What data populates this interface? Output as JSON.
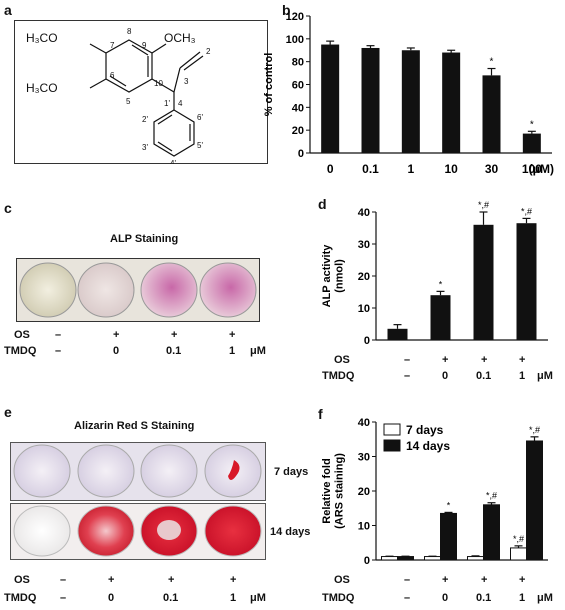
{
  "panels": {
    "a": {
      "letter": "a",
      "labels": {
        "och3_left": "H₃CO",
        "och3_left2": "H₃CO",
        "och3_right": "OCH₃",
        "n7": "7",
        "n8": "8",
        "n9": "9",
        "n6": "6",
        "n5": "5",
        "n10": "10",
        "n2": "2",
        "n3": "3",
        "n4": "4",
        "n1p": "1'",
        "n2p": "2'",
        "n3p": "3'",
        "n4p": "4'",
        "n5p": "5'",
        "n6p": "6'"
      }
    },
    "b": {
      "letter": "b"
    },
    "c": {
      "letter": "c",
      "caption": "ALP Staining",
      "os_label": "OS",
      "tmdq_label": "TMDQ",
      "os_values": [
        "–",
        "+",
        "+",
        "+"
      ],
      "tmdq_values": [
        "–",
        "0",
        "0.1",
        "1"
      ],
      "unit": "μM"
    },
    "d": {
      "letter": "d",
      "os_label": "OS",
      "tmdq_label": "TMDQ",
      "os_values": [
        "–",
        "+",
        "+",
        "+"
      ],
      "tmdq_values": [
        "–",
        "0",
        "0.1",
        "1"
      ],
      "unit": "μM"
    },
    "e": {
      "letter": "e",
      "caption": "Alizarin Red S Staining",
      "row1": "7 days",
      "row2": "14 days",
      "os_label": "OS",
      "tmdq_label": "TMDQ",
      "os_values": [
        "–",
        "+",
        "+",
        "+"
      ],
      "tmdq_values": [
        "–",
        "0",
        "0.1",
        "1"
      ],
      "unit": "μM"
    },
    "f": {
      "letter": "f",
      "os_label": "OS",
      "tmdq_label": "TMDQ",
      "os_values": [
        "–",
        "+",
        "+",
        "+"
      ],
      "tmdq_values": [
        "–",
        "0",
        "0.1",
        "1"
      ],
      "unit": "μM"
    }
  },
  "chart_data": [
    {
      "panel": "b",
      "type": "bar",
      "categories": [
        "0",
        "0.1",
        "1",
        "10",
        "30",
        "100"
      ],
      "values": [
        95,
        92,
        90,
        88,
        68,
        17
      ],
      "errors": [
        3,
        2,
        2,
        2,
        6,
        2
      ],
      "annotations": [
        "",
        "",
        "",
        "",
        "*",
        "*"
      ],
      "xunit": "(μM)",
      "ylabel": "% of control",
      "ylim": [
        0,
        120
      ],
      "yticks": [
        0,
        20,
        40,
        60,
        80,
        100,
        120
      ]
    },
    {
      "panel": "d",
      "type": "bar",
      "categories": [
        "1",
        "2",
        "3",
        "4"
      ],
      "values": [
        3.5,
        14,
        36,
        36.5
      ],
      "errors": [
        1.3,
        1.2,
        4,
        1.5
      ],
      "annotations": [
        "",
        "*",
        "*,#",
        "*,#"
      ],
      "ylabel": "ALP activity (nmol)",
      "ylim": [
        0,
        40
      ],
      "yticks": [
        0,
        10,
        20,
        30,
        40
      ]
    },
    {
      "panel": "f",
      "type": "bar",
      "categories": [
        "1",
        "2",
        "3",
        "4"
      ],
      "series": [
        {
          "name": "7 days",
          "values": [
            1,
            1,
            1,
            3.5
          ],
          "errors": [
            0.1,
            0.1,
            0.2,
            0.6
          ],
          "annotations": [
            "",
            "",
            "",
            "*,#"
          ]
        },
        {
          "name": "14 days",
          "values": [
            1,
            13.5,
            16,
            34.5
          ],
          "errors": [
            0.1,
            0.3,
            0.6,
            1.2
          ],
          "annotations": [
            "",
            "*",
            "*,#",
            "*,#"
          ]
        }
      ],
      "ylabel": "Relative fold (ARS staining)",
      "ylim": [
        0,
        40
      ],
      "yticks": [
        0,
        10,
        20,
        30,
        40
      ],
      "legend_position": "top-left"
    }
  ]
}
